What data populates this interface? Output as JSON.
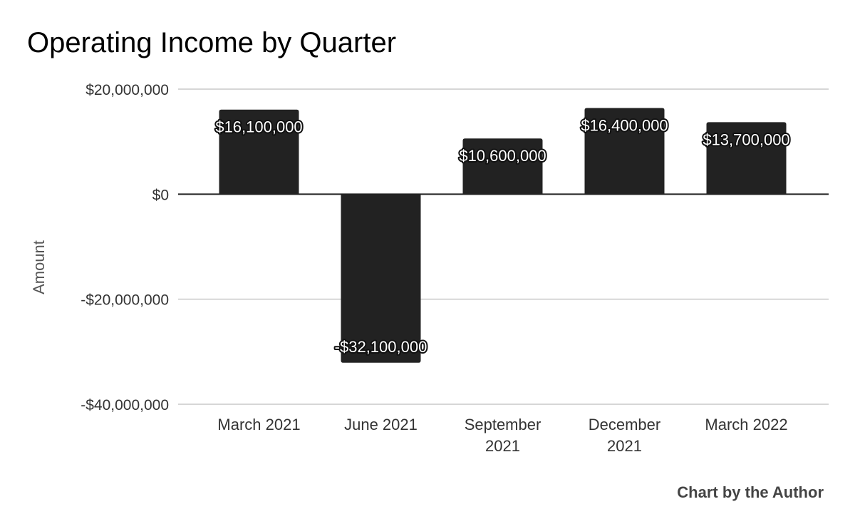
{
  "chart_data": {
    "type": "bar",
    "title": "Operating Income by Quarter",
    "xlabel": "",
    "ylabel": "Amount",
    "categories": [
      "March 2021",
      "June 2021",
      "September 2021",
      "December 2021",
      "March 2022"
    ],
    "category_lines": [
      [
        "March 2021"
      ],
      [
        "June 2021"
      ],
      [
        "September",
        "2021"
      ],
      [
        "December",
        "2021"
      ],
      [
        "March 2022"
      ]
    ],
    "values": [
      16100000,
      -32100000,
      10600000,
      16400000,
      13700000
    ],
    "data_labels": [
      "$16,100,000",
      "-$32,100,000",
      "$10,600,000",
      "$16,400,000",
      "$13,700,000"
    ],
    "ylim": [
      -40000000,
      20000000
    ],
    "yticks": [
      20000000,
      0,
      -20000000,
      -40000000
    ],
    "ytick_labels": [
      "$20,000,000",
      "$0",
      "-$20,000,000",
      "-$40,000,000"
    ],
    "grid": true,
    "legend": "none",
    "bar_color": "#222222",
    "credit": "Chart by the Author"
  }
}
